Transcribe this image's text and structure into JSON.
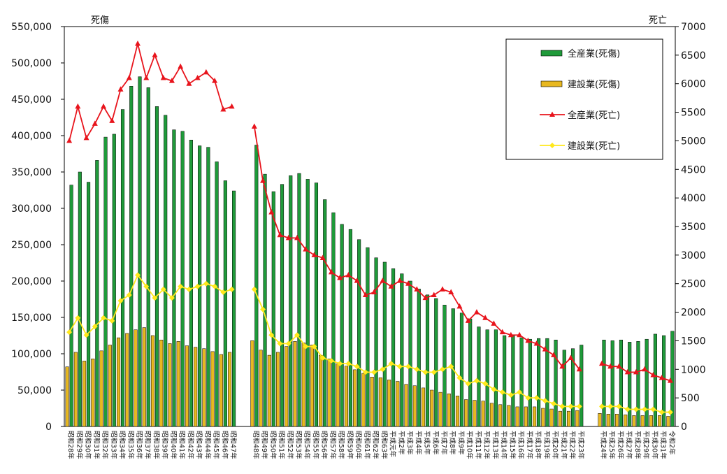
{
  "chart_data": {
    "type": "bar+line",
    "left_axis_label": "死傷",
    "right_axis_label": "死亡",
    "ylim_left": [
      0,
      550000
    ],
    "ylim_right": [
      0,
      7000
    ],
    "yticks_left": [
      "550,000",
      "500,000",
      "450,000",
      "400,000",
      "350,000",
      "300,000",
      "250,000",
      "200,000",
      "150,000",
      "100,000",
      "50,000",
      "0"
    ],
    "yticks_right": [
      "7000",
      "6500",
      "6000",
      "5500",
      "5000",
      "4500",
      "4000",
      "3500",
      "3000",
      "2500",
      "2000",
      "1500",
      "1000",
      "500",
      "0"
    ],
    "categories": [
      "昭和28年",
      "昭和29年",
      "昭和30年",
      "昭和31年",
      "昭和32年",
      "昭和33年",
      "昭和34年",
      "昭和35年",
      "昭和36年",
      "昭和37年",
      "昭和38年",
      "昭和39年",
      "昭和40年",
      "昭和41年",
      "昭和42年",
      "昭和43年",
      "昭和44年",
      "昭和45年",
      "昭和46年",
      "昭和47年",
      "昭和48年",
      "昭和49年",
      "昭和50年",
      "昭和51年",
      "昭和52年",
      "昭和53年",
      "昭和54年",
      "昭和55年",
      "昭和56年",
      "昭和57年",
      "昭和58年",
      "昭和59年",
      "昭和60年",
      "昭和61年",
      "昭和62年",
      "昭和63年",
      "平成元年",
      "平成2年",
      "平成3年",
      "平成4年",
      "平成5年",
      "平成6年",
      "平成7年",
      "平成8年",
      "平成9年",
      "平成10年",
      "平成11年",
      "平成12年",
      "平成13年",
      "平成14年",
      "平成15年",
      "平成16年",
      "平成17年",
      "平成18年",
      "平成19年",
      "平成20年",
      "平成21年",
      "平成22年",
      "平成23年",
      "平成24年",
      "平成25年",
      "平成26年",
      "平成27年",
      "平成28年",
      "平成29年",
      "平成30年",
      "平成31年",
      "令和2年"
    ],
    "groups": [
      {
        "name": "昭和28年-昭和47年",
        "start": 0,
        "end": 19
      },
      {
        "name": "昭和48年-平成23年",
        "start": 20,
        "end": 58
      },
      {
        "name": "平成24年-令和2年",
        "start": 59,
        "end": 67
      }
    ],
    "series": [
      {
        "name": "全産業(死傷)",
        "kind": "bar",
        "axis": "left",
        "color": "#1f9a3a",
        "values": [
          332000,
          350000,
          336000,
          366000,
          398000,
          402000,
          436000,
          468000,
          481000,
          466000,
          440000,
          428000,
          408000,
          406000,
          394000,
          386000,
          384000,
          364000,
          338000,
          324000,
          387000,
          347000,
          323000,
          333000,
          345000,
          348000,
          340000,
          335000,
          312000,
          294000,
          278000,
          271000,
          257000,
          246000,
          232000,
          226000,
          217000,
          210000,
          200000,
          189000,
          181000,
          176000,
          167000,
          162000,
          156000,
          148000,
          137000,
          133000,
          133000,
          125000,
          125000,
          122000,
          120000,
          121000,
          121000,
          119000,
          105000,
          107000,
          112000,
          119000,
          118000,
          119000,
          116000,
          117000,
          120000,
          127000,
          125000,
          131000
        ]
      },
      {
        "name": "建設業(死傷)",
        "kind": "bar",
        "axis": "left",
        "color": "#e8b820",
        "values": [
          82000,
          102000,
          90000,
          93000,
          104000,
          112000,
          122000,
          128000,
          133000,
          136000,
          125000,
          119000,
          114000,
          117000,
          111000,
          109000,
          107000,
          103000,
          99000,
          102000,
          118000,
          105000,
          98000,
          102000,
          110000,
          117000,
          115000,
          112000,
          98000,
          93000,
          86000,
          83000,
          78000,
          73000,
          68000,
          67000,
          64000,
          62000,
          58000,
          56000,
          53000,
          50000,
          47000,
          45000,
          42000,
          37000,
          36000,
          35000,
          32000,
          30000,
          29000,
          27000,
          27000,
          27000,
          25000,
          24000,
          21000,
          21000,
          22000,
          18000,
          17000,
          17000,
          16000,
          15000,
          15000,
          15000,
          15000,
          14000
        ]
      },
      {
        "name": "全産業(死亡)",
        "kind": "line",
        "axis": "right",
        "color": "#e8141c",
        "marker": "triangle",
        "values": [
          5000,
          5600,
          5050,
          5300,
          5600,
          5350,
          5900,
          6100,
          6700,
          6100,
          6500,
          6100,
          6050,
          6300,
          6000,
          6100,
          6200,
          6050,
          5550,
          5600,
          5250,
          4300,
          3750,
          3350,
          3300,
          3300,
          3100,
          3000,
          2950,
          2700,
          2600,
          2650,
          2550,
          2300,
          2350,
          2550,
          2450,
          2550,
          2500,
          2400,
          2250,
          2300,
          2400,
          2350,
          2100,
          1850,
          2000,
          1900,
          1800,
          1650,
          1600,
          1600,
          1500,
          1450,
          1350,
          1250,
          1050,
          1200,
          1000,
          1100,
          1050,
          1050,
          950,
          950,
          1000,
          900,
          850,
          800
        ]
      },
      {
        "name": "建設業(死亡)",
        "kind": "line",
        "axis": "right",
        "color": "#ffe81c",
        "marker": "diamond",
        "values": [
          1650,
          1900,
          1600,
          1750,
          1900,
          1850,
          2200,
          2300,
          2650,
          2450,
          2250,
          2400,
          2250,
          2450,
          2400,
          2450,
          2500,
          2450,
          2350,
          2400,
          2400,
          2050,
          1600,
          1450,
          1450,
          1600,
          1400,
          1400,
          1200,
          1150,
          1100,
          1100,
          1050,
          950,
          950,
          1000,
          1100,
          1050,
          1050,
          1000,
          950,
          950,
          1000,
          1050,
          850,
          750,
          800,
          750,
          650,
          600,
          550,
          600,
          500,
          500,
          450,
          400,
          350,
          350,
          350,
          350,
          350,
          350,
          300,
          300,
          300,
          300,
          250,
          250
        ]
      }
    ],
    "legend": [
      {
        "label": "全産業(死傷)",
        "series": 0
      },
      {
        "label": "建設業(死傷)",
        "series": 1
      },
      {
        "label": "全産業(死亡)",
        "series": 2
      },
      {
        "label": "建設業(死亡)",
        "series": 3
      }
    ],
    "legend_position": "top-right"
  }
}
